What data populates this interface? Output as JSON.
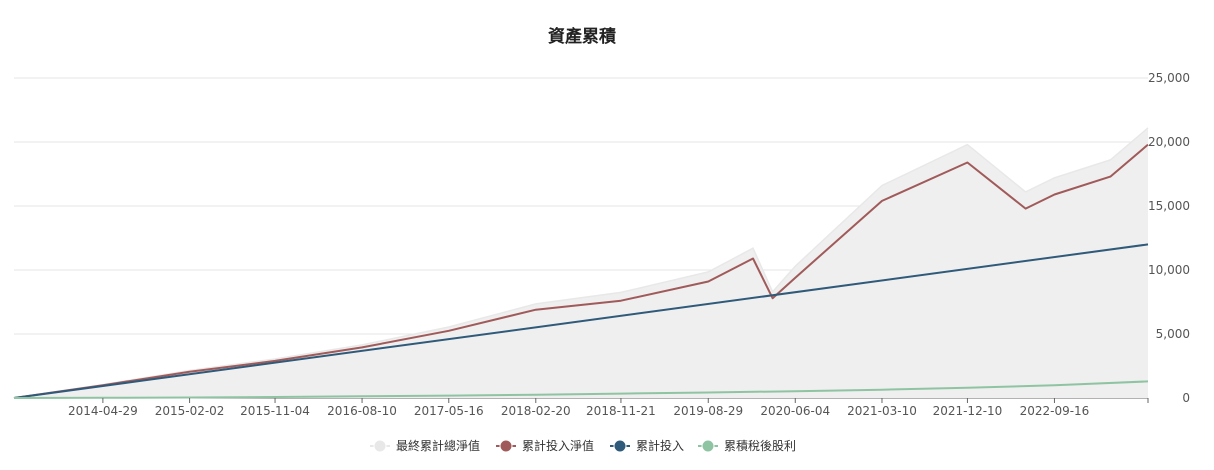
{
  "chart_data": {
    "type": "area",
    "title": "資產累積",
    "xlabel": "",
    "ylabel": "",
    "ylim": [
      0,
      25000
    ],
    "y_ticks": [
      0,
      5000,
      10000,
      15000,
      20000,
      25000
    ],
    "y_tick_labels": [
      "0",
      "5,000",
      "10,000",
      "15,000",
      "20,000",
      "25,000"
    ],
    "y_axis_position": "right",
    "x_range": [
      "2013-07-17",
      "2023-07-14"
    ],
    "x_tick_labels": [
      "2014-04-29",
      "2015-02-02",
      "2015-11-04",
      "2016-08-10",
      "2017-05-16",
      "2018-02-20",
      "2018-11-21",
      "2019-08-29",
      "2020-06-04",
      "2021-03-10",
      "2021-12-10",
      "2022-09-16"
    ],
    "grid": true,
    "legend_position": "bottom",
    "series": [
      {
        "name": "最終累計總淨值",
        "style": "area",
        "color": "#e8e8e8",
        "x": [
          "2013-07-17",
          "2014-04-29",
          "2015-02-02",
          "2015-11-04",
          "2016-08-10",
          "2017-05-16",
          "2018-02-20",
          "2018-11-21",
          "2019-08-29",
          "2020-01-20",
          "2020-03-23",
          "2020-06-04",
          "2021-03-10",
          "2021-12-10",
          "2022-06-15",
          "2022-09-16",
          "2023-03-15",
          "2023-07-14"
        ],
        "values": [
          0,
          1050,
          2150,
          3050,
          4150,
          5550,
          7350,
          8250,
          9850,
          11700,
          8300,
          10300,
          16600,
          19800,
          16100,
          17200,
          18600,
          21100
        ]
      },
      {
        "name": "累計投入淨值",
        "style": "line",
        "color": "#a05a5a",
        "x": [
          "2013-07-17",
          "2014-04-29",
          "2015-02-02",
          "2015-11-04",
          "2016-08-10",
          "2017-05-16",
          "2018-02-20",
          "2018-11-21",
          "2019-08-29",
          "2020-01-20",
          "2020-03-23",
          "2020-06-04",
          "2021-03-10",
          "2021-12-10",
          "2022-06-15",
          "2022-09-16",
          "2023-03-15",
          "2023-07-14"
        ],
        "values": [
          0,
          1000,
          2050,
          2900,
          3950,
          5250,
          6900,
          7600,
          9100,
          10900,
          7800,
          9400,
          15400,
          18400,
          14800,
          15900,
          17300,
          19800
        ]
      },
      {
        "name": "累計投入",
        "style": "line",
        "color": "#2f5a7a",
        "x": [
          "2013-07-17",
          "2023-07-14"
        ],
        "values": [
          0,
          12000
        ]
      },
      {
        "name": "累積稅後股利",
        "style": "line",
        "color": "#8fc4a2",
        "x": [
          "2013-07-17",
          "2014-04-29",
          "2015-02-02",
          "2015-11-04",
          "2016-08-10",
          "2017-05-16",
          "2018-02-20",
          "2018-11-21",
          "2019-08-29",
          "2020-06-04",
          "2021-03-10",
          "2021-12-10",
          "2022-09-16",
          "2023-07-14"
        ],
        "values": [
          0,
          15,
          40,
          80,
          130,
          190,
          260,
          340,
          430,
          530,
          650,
          800,
          1000,
          1300
        ]
      }
    ]
  }
}
